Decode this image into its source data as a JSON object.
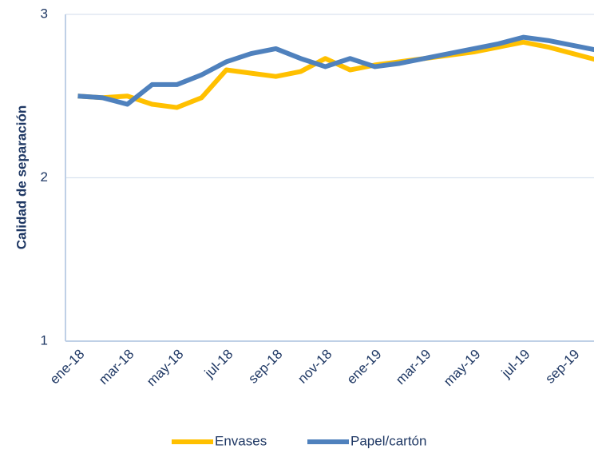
{
  "chart_data": {
    "type": "line",
    "y_label": "Calidad de separación",
    "categories": [
      "ene-18",
      null,
      "mar-18",
      null,
      "may-18",
      null,
      "jul-18",
      null,
      "sep-18",
      null,
      "nov-18",
      null,
      "ene-19",
      null,
      "mar-19",
      null,
      "may-19",
      null,
      "jul-19",
      null,
      "sep-19",
      null
    ],
    "series": [
      {
        "name": "Envases",
        "color": "#ffc000",
        "values": [
          2.5,
          2.49,
          2.5,
          2.45,
          2.43,
          2.49,
          2.66,
          2.64,
          2.62,
          2.65,
          2.73,
          2.66,
          2.69,
          2.71,
          2.73,
          2.75,
          2.77,
          2.8,
          2.83,
          2.8,
          2.76,
          2.72
        ]
      },
      {
        "name": "Papel/cartón",
        "color": "#4f81bd",
        "values": [
          2.5,
          2.49,
          2.45,
          2.57,
          2.57,
          2.63,
          2.71,
          2.76,
          2.79,
          2.73,
          2.68,
          2.73,
          2.68,
          2.7,
          2.73,
          2.76,
          2.79,
          2.82,
          2.86,
          2.84,
          2.81,
          2.78
        ]
      }
    ],
    "ylim": [
      1,
      3
    ],
    "yticks": [
      1,
      2,
      3
    ],
    "grid": true,
    "legend": "bottom"
  }
}
